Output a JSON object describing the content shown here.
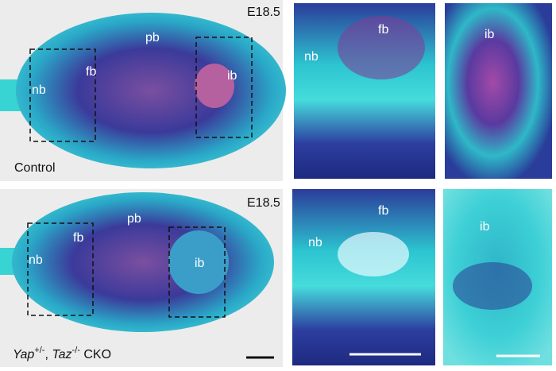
{
  "rows": [
    {
      "stage": "E18.5",
      "genotype": [
        "Control"
      ],
      "overview_labels": {
        "nb": "nb",
        "fb": "fb",
        "pb": "pb",
        "ib": "ib"
      },
      "zoom_front_labels": {
        "nb": "nb",
        "fb": "fb"
      },
      "zoom_back_labels": {
        "ib": "ib"
      }
    },
    {
      "stage": "E18.5",
      "genotype": [
        "Yap",
        "+/-",
        ", ",
        "Taz",
        "-/-",
        " CKO"
      ],
      "overview_labels": {
        "nb": "nb",
        "fb": "fb",
        "pb": "pb",
        "ib": "ib"
      },
      "zoom_front_labels": {
        "nb": "nb",
        "fb": "fb"
      },
      "zoom_back_labels": {
        "ib": "ib"
      }
    }
  ]
}
